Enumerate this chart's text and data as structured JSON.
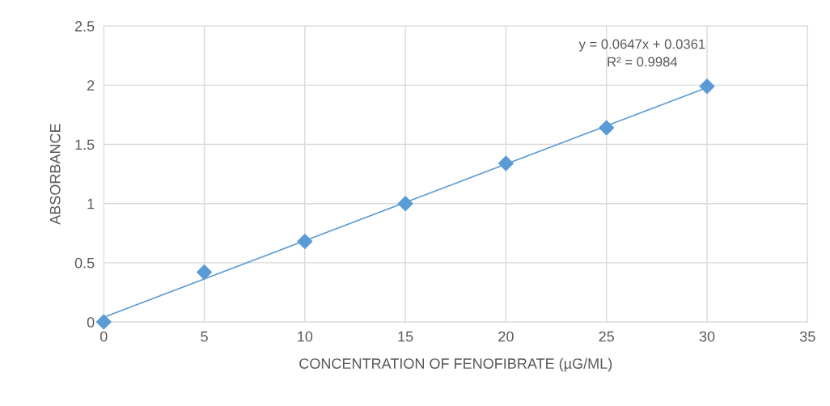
{
  "chart_data": {
    "type": "scatter",
    "xlabel": "CONCENTRATION OF FENOFIBRATE (µG/ML)",
    "ylabel": "ABSORBANCE",
    "x": [
      0,
      5,
      10,
      15,
      20,
      25,
      30
    ],
    "series": [
      {
        "color": "#5b9bd5",
        "marker": "diamond",
        "values": [
          0,
          0.42,
          0.68,
          1.0,
          1.34,
          1.64,
          1.99
        ]
      },
      {
        "type": "line",
        "color": "#5b9bd5",
        "marker": "none",
        "x": [
          0,
          30
        ],
        "values": [
          0.04,
          1.98
        ]
      }
    ],
    "annotations": [
      "y = 0.0647x + 0.0361",
      "R² = 0.9984"
    ],
    "xlim": [
      0,
      35
    ],
    "xticks": [
      0,
      5,
      10,
      15,
      20,
      25,
      30,
      35
    ],
    "ylim": [
      0,
      2.5
    ],
    "yticks": [
      0,
      0.5,
      1,
      1.5,
      2,
      2.5
    ],
    "grid": true,
    "legend": false
  }
}
